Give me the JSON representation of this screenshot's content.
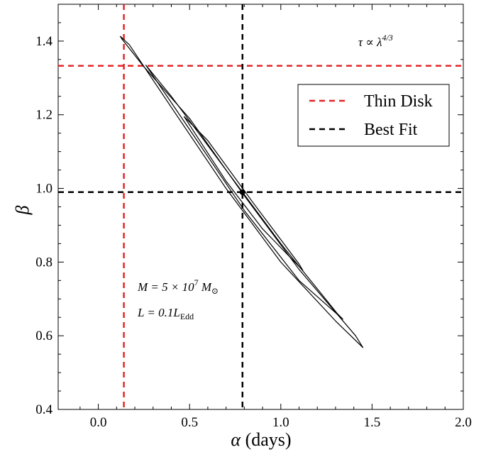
{
  "chart_data": {
    "type": "line",
    "xlabel_symbol": "α",
    "xlabel_unit": "(days)",
    "ylabel": "β",
    "xlim": [
      -0.22,
      2.0
    ],
    "ylim": [
      0.4,
      1.5
    ],
    "x_ticks": [
      "0.0",
      "0.5",
      "1.0",
      "1.5",
      "2.0"
    ],
    "y_ticks": [
      "0.4",
      "0.6",
      "0.8",
      "1.0",
      "1.2",
      "1.4"
    ],
    "grid": false,
    "legend_position": "upper-right",
    "reference_lines": [
      {
        "name": "Thin Disk",
        "color": "#e32626",
        "style": "dashed",
        "x": 0.14,
        "y": 1.333
      },
      {
        "name": "Best Fit",
        "color": "#000000",
        "style": "dashed",
        "x": 0.79,
        "y": 0.99
      }
    ],
    "best_fit_point": {
      "x": 0.79,
      "y": 0.99
    },
    "contours": [
      {
        "level": "outer",
        "points": [
          [
            0.12,
            1.413
          ],
          [
            0.17,
            1.39
          ],
          [
            0.4,
            1.22
          ],
          [
            0.7,
            1.0
          ],
          [
            1.0,
            0.8
          ],
          [
            1.3,
            0.64
          ],
          [
            1.45,
            0.568
          ],
          [
            1.41,
            0.6
          ],
          [
            1.1,
            0.78
          ],
          [
            0.8,
            0.98
          ],
          [
            0.5,
            1.19
          ],
          [
            0.25,
            1.33
          ],
          [
            0.13,
            1.405
          ]
        ]
      },
      {
        "level": "middle",
        "points": [
          [
            0.26,
            1.335
          ],
          [
            0.5,
            1.16
          ],
          [
            0.8,
            0.94
          ],
          [
            1.1,
            0.75
          ],
          [
            1.34,
            0.645
          ],
          [
            1.31,
            0.66
          ],
          [
            1.0,
            0.85
          ],
          [
            0.7,
            1.05
          ],
          [
            0.4,
            1.25
          ],
          [
            0.26,
            1.335
          ]
        ]
      },
      {
        "level": "inner",
        "points": [
          [
            0.47,
            1.195
          ],
          [
            0.7,
            1.02
          ],
          [
            0.9,
            0.89
          ],
          [
            1.12,
            0.778
          ],
          [
            1.1,
            0.795
          ],
          [
            0.85,
            0.96
          ],
          [
            0.6,
            1.13
          ],
          [
            0.47,
            1.195
          ]
        ]
      }
    ],
    "annotations": {
      "scaling": "τ ∝ λ^{4/3}",
      "scaling_lhs": "τ ∝ λ",
      "scaling_exp": "4/3",
      "mass_prefix": "M = 5 × 10",
      "mass_exp": "7",
      "mass_unit": "M",
      "mass_sub": "⊙",
      "lum_prefix": "L = 0.1L",
      "lum_sub": "Edd"
    }
  }
}
